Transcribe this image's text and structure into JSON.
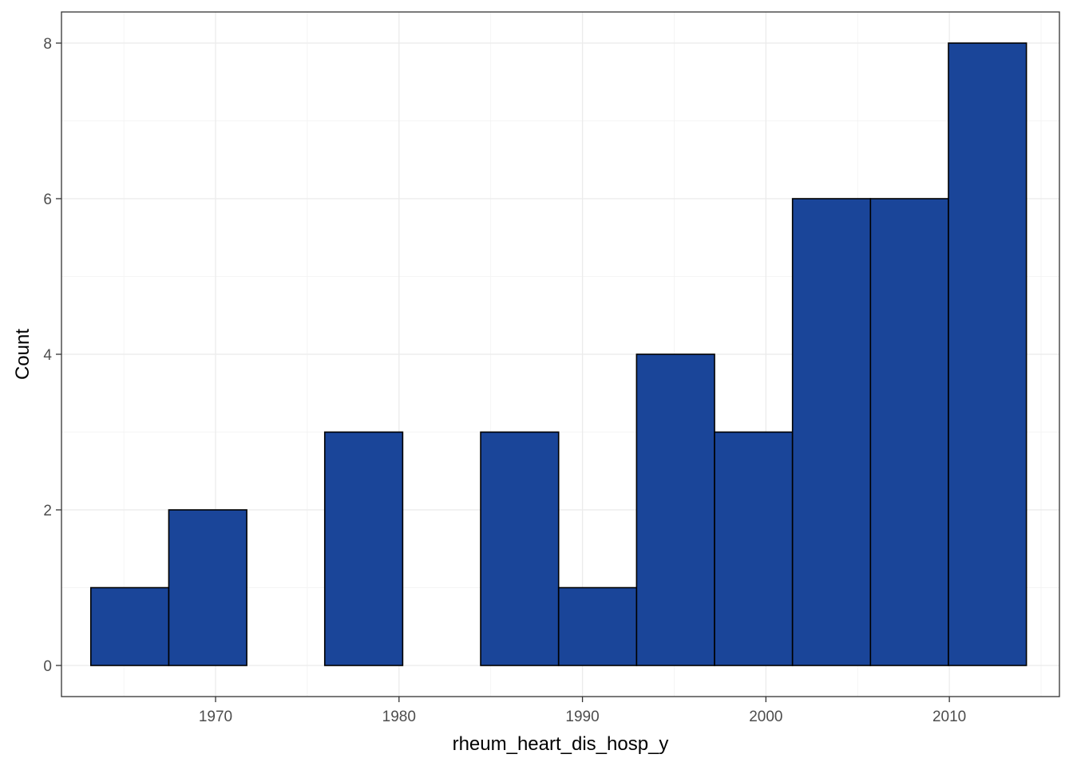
{
  "chart_data": {
    "type": "bar",
    "subtype": "histogram",
    "xlabel": "rheum_heart_dis_hosp_y",
    "ylabel": "Count",
    "xlim": [
      1961.6,
      2016.0
    ],
    "ylim": [
      -0.4,
      8.4
    ],
    "x_ticks": [
      1970,
      1980,
      1990,
      2000,
      2010
    ],
    "y_ticks": [
      0,
      2,
      4,
      6,
      8
    ],
    "grid": true,
    "bin_edges": [
      1963.2,
      1967.45,
      1971.7,
      1975.95,
      1980.2,
      1984.45,
      1988.7,
      1992.95,
      1997.2,
      2001.45,
      2005.7,
      2009.95,
      2014.2
    ],
    "values": [
      1,
      2,
      0,
      3,
      0,
      3,
      1,
      4,
      3,
      6,
      6,
      8
    ],
    "colors": {
      "fill": "#1a4599",
      "outline": "#000000"
    }
  }
}
